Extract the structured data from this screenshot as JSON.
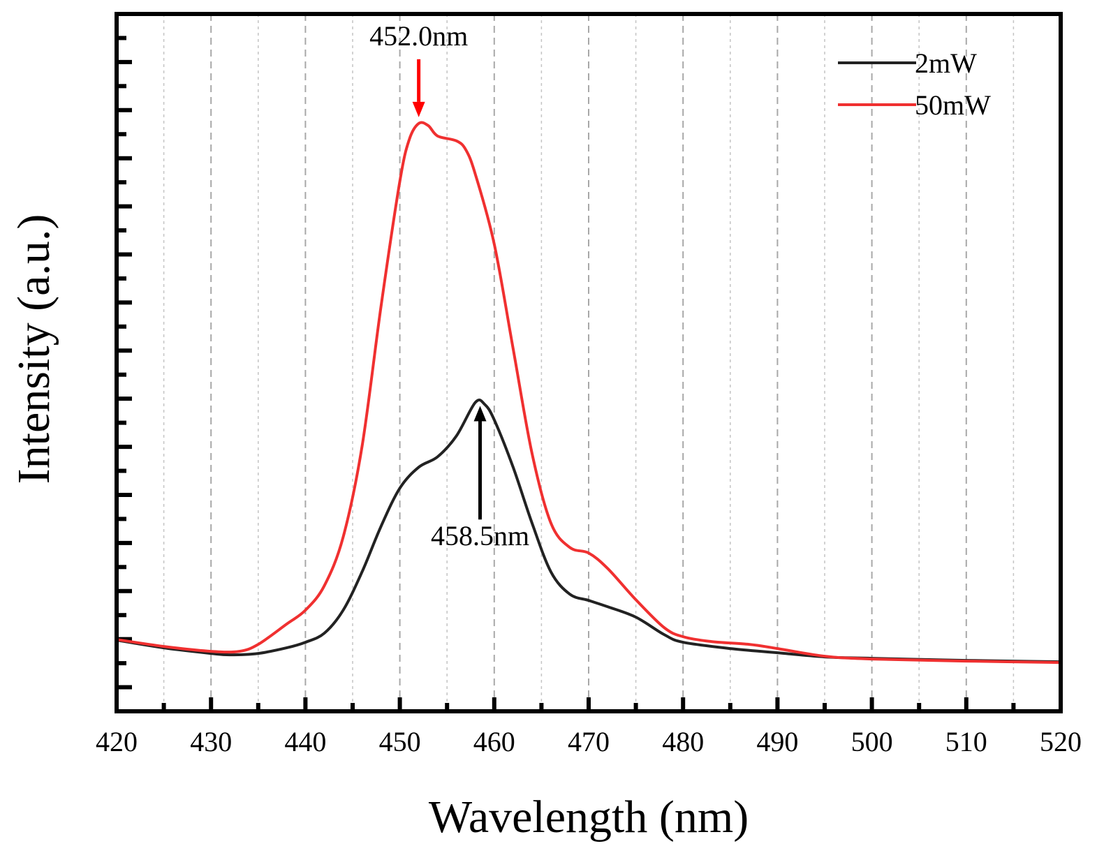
{
  "chart_data": {
    "type": "line",
    "title": "",
    "xlabel": "Wavelength (nm)",
    "ylabel": "Intensity (a.u.)",
    "xlim": [
      420,
      520
    ],
    "ylim": [
      0,
      100
    ],
    "x_ticks": [
      420,
      430,
      440,
      450,
      460,
      470,
      480,
      490,
      500,
      510,
      520
    ],
    "y_tick_labels_shown": false,
    "grid": "vertical dashed",
    "legend_position": "top-right",
    "series": [
      {
        "name": "2mW",
        "color": "#222222",
        "points": [
          [
            420,
            10.2
          ],
          [
            425,
            9.1
          ],
          [
            430,
            8.3
          ],
          [
            432,
            8.1
          ],
          [
            435,
            8.3
          ],
          [
            438,
            9.1
          ],
          [
            440,
            9.9
          ],
          [
            442,
            11.2
          ],
          [
            444,
            14.5
          ],
          [
            446,
            20.0
          ],
          [
            448,
            26.5
          ],
          [
            450,
            32.0
          ],
          [
            452,
            35.0
          ],
          [
            454,
            36.5
          ],
          [
            456,
            39.5
          ],
          [
            458,
            44.3
          ],
          [
            459,
            44.0
          ],
          [
            460,
            41.8
          ],
          [
            462,
            35.0
          ],
          [
            464,
            27.0
          ],
          [
            466,
            20.0
          ],
          [
            468,
            16.8
          ],
          [
            470,
            15.9
          ],
          [
            472,
            15.0
          ],
          [
            475,
            13.5
          ],
          [
            478,
            11.0
          ],
          [
            480,
            9.9
          ],
          [
            485,
            9.0
          ],
          [
            490,
            8.4
          ],
          [
            495,
            7.8
          ],
          [
            500,
            7.6
          ],
          [
            510,
            7.3
          ],
          [
            520,
            7.1
          ]
        ]
      },
      {
        "name": "50mW",
        "color": "#f03030",
        "points": [
          [
            420,
            10.3
          ],
          [
            425,
            9.3
          ],
          [
            430,
            8.6
          ],
          [
            433,
            8.6
          ],
          [
            435,
            9.6
          ],
          [
            438,
            12.5
          ],
          [
            440,
            14.5
          ],
          [
            442,
            18.0
          ],
          [
            444,
            25.0
          ],
          [
            446,
            38.0
          ],
          [
            448,
            58.0
          ],
          [
            450,
            76.0
          ],
          [
            451,
            82.0
          ],
          [
            452,
            84.3
          ],
          [
            453,
            84.0
          ],
          [
            454,
            82.5
          ],
          [
            456,
            81.8
          ],
          [
            457,
            80.5
          ],
          [
            458,
            77.0
          ],
          [
            460,
            67.0
          ],
          [
            462,
            52.0
          ],
          [
            464,
            37.0
          ],
          [
            466,
            27.0
          ],
          [
            468,
            23.5
          ],
          [
            470,
            22.7
          ],
          [
            472,
            20.5
          ],
          [
            475,
            16.0
          ],
          [
            478,
            12.0
          ],
          [
            480,
            10.7
          ],
          [
            483,
            10.0
          ],
          [
            487,
            9.6
          ],
          [
            490,
            9.0
          ],
          [
            495,
            7.9
          ],
          [
            500,
            7.5
          ],
          [
            510,
            7.2
          ],
          [
            520,
            7.0
          ]
        ]
      }
    ],
    "annotations": [
      {
        "text": "452.0nm",
        "x": 452.0,
        "color": "#ff0000",
        "direction": "down",
        "arrow_from_y": 93.5,
        "arrow_to_y": 85.2,
        "label_y": 95.5
      },
      {
        "text": "458.5nm",
        "x": 458.5,
        "color": "#000000",
        "direction": "up",
        "arrow_from_y": 27.5,
        "arrow_to_y": 43.8,
        "label_y": 23.8
      }
    ]
  }
}
